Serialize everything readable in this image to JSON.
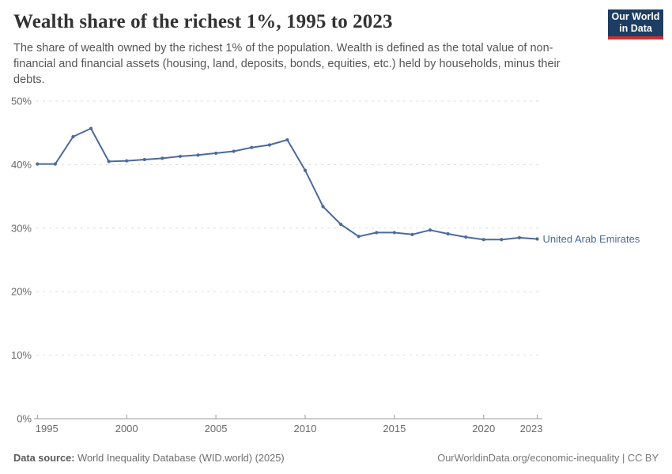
{
  "header": {
    "title": "Wealth share of the richest 1%, 1995 to 2023",
    "subtitle": "The share of wealth owned by the richest 1% of the population. Wealth is defined as the total value of non-financial and financial assets (housing, land, deposits, bonds, equities, etc.) held by households, minus their debts.",
    "logo": {
      "line1": "Our World",
      "line2": "in Data",
      "bg_color": "#1d3d63",
      "accent_color": "#d22e2e"
    }
  },
  "chart_data": {
    "type": "line",
    "title": "Wealth share of the richest 1%, 1995 to 2023",
    "x": [
      1995,
      1996,
      1997,
      1998,
      1999,
      2000,
      2001,
      2002,
      2003,
      2004,
      2005,
      2006,
      2007,
      2008,
      2009,
      2010,
      2011,
      2012,
      2013,
      2014,
      2015,
      2016,
      2017,
      2018,
      2019,
      2020,
      2021,
      2022,
      2023
    ],
    "series": [
      {
        "name": "United Arab Emirates",
        "color": "#4c6a9c",
        "values": [
          40.1,
          40.1,
          44.4,
          45.7,
          40.5,
          40.6,
          40.8,
          41.0,
          41.3,
          41.5,
          41.8,
          42.1,
          42.7,
          43.1,
          43.9,
          39.1,
          33.4,
          30.6,
          28.7,
          29.3,
          29.3,
          29.0,
          29.7,
          29.1,
          28.6,
          28.2,
          28.2,
          28.5,
          28.3
        ]
      }
    ],
    "x_ticks": [
      1995,
      2000,
      2005,
      2010,
      2015,
      2020,
      2023
    ],
    "y_ticks": [
      0,
      10,
      20,
      30,
      40,
      50
    ],
    "y_tick_suffix": "%",
    "xlim": [
      1995,
      2023
    ],
    "ylim": [
      0,
      50
    ],
    "grid": "horizontal-dashed",
    "grid_color": "#dcdcdc",
    "axis_color": "#999999",
    "legend_position": "end-of-line",
    "xlabel": "",
    "ylabel": ""
  },
  "footer": {
    "datasource_label": "Data source:",
    "datasource_value": "World Inequality Database (WID.world) (2025)",
    "credit": "OurWorldinData.org/economic-inequality | CC BY"
  }
}
